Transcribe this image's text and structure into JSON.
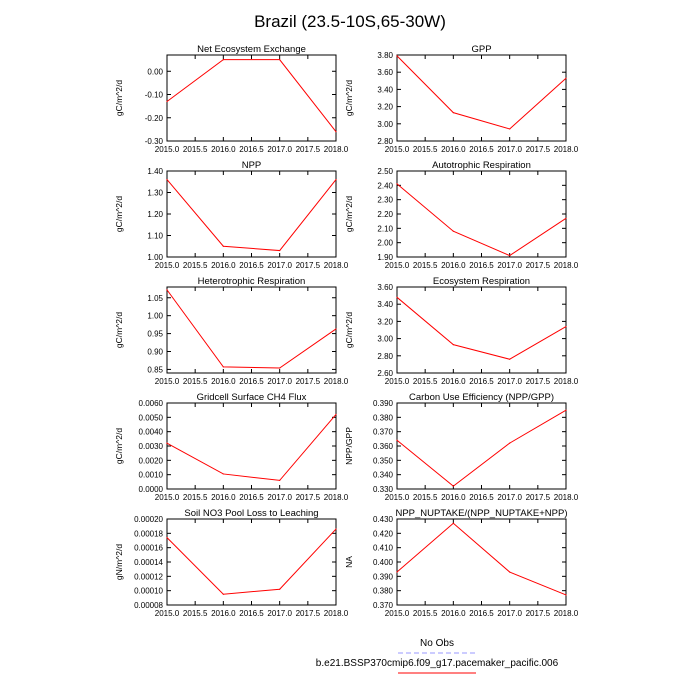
{
  "title": "Brazil (23.5-10S,65-30W)",
  "legend": {
    "obs_label": "No Obs",
    "obs_color": "#9999ff",
    "model_label": "b.e21.BSSP370cmip6.f09_g17.pacemaker_pacific.006",
    "model_color": "#ff0000"
  },
  "chart_data": [
    {
      "type": "line",
      "title": "Net Ecosystem Exchange",
      "ylabel": "gC/m^2/d",
      "x": [
        2015.0,
        2016.0,
        2017.0,
        2018.0
      ],
      "values": [
        -0.13,
        0.05,
        0.05,
        -0.26
      ],
      "xlim": [
        2015.0,
        2018.0
      ],
      "ylim": [
        -0.3,
        0.07
      ],
      "xticks": [
        "2015.0",
        "2015.5",
        "2016.0",
        "2016.5",
        "2017.0",
        "2017.5",
        "2018.0"
      ],
      "yticks": [
        "-0.30",
        "-0.20",
        "-0.10",
        "0.00"
      ]
    },
    {
      "type": "line",
      "title": "GPP",
      "ylabel": "gC/m^2/d",
      "x": [
        2015.0,
        2016.0,
        2017.0,
        2018.0
      ],
      "values": [
        3.79,
        3.13,
        2.94,
        3.53
      ],
      "xlim": [
        2015.0,
        2018.0
      ],
      "ylim": [
        2.8,
        3.8
      ],
      "xticks": [
        "2015.0",
        "2015.5",
        "2016.0",
        "2016.5",
        "2017.0",
        "2017.5",
        "2018.0"
      ],
      "yticks": [
        "2.80",
        "3.00",
        "3.20",
        "3.40",
        "3.60",
        "3.80"
      ]
    },
    {
      "type": "line",
      "title": "NPP",
      "ylabel": "gC/m^2/d",
      "x": [
        2015.0,
        2016.0,
        2017.0,
        2018.0
      ],
      "values": [
        1.36,
        1.05,
        1.03,
        1.36
      ],
      "xlim": [
        2015.0,
        2018.0
      ],
      "ylim": [
        1.0,
        1.4
      ],
      "xticks": [
        "2015.0",
        "2015.5",
        "2016.0",
        "2016.5",
        "2017.0",
        "2017.5",
        "2018.0"
      ],
      "yticks": [
        "1.00",
        "1.10",
        "1.20",
        "1.30",
        "1.40"
      ]
    },
    {
      "type": "line",
      "title": "Autotrophic Respiration",
      "ylabel": "gC/m^2/d",
      "x": [
        2015.0,
        2016.0,
        2017.0,
        2018.0
      ],
      "values": [
        2.41,
        2.08,
        1.91,
        2.17
      ],
      "xlim": [
        2015.0,
        2018.0
      ],
      "ylim": [
        1.9,
        2.5
      ],
      "xticks": [
        "2015.0",
        "2015.5",
        "2016.0",
        "2016.5",
        "2017.0",
        "2017.5",
        "2018.0"
      ],
      "yticks": [
        "1.90",
        "2.00",
        "2.10",
        "2.20",
        "2.30",
        "2.40",
        "2.50"
      ]
    },
    {
      "type": "line",
      "title": "Heterotrophic Respiration",
      "ylabel": "gC/m^2/d",
      "x": [
        2015.0,
        2016.0,
        2017.0,
        2018.0
      ],
      "values": [
        1.072,
        0.857,
        0.854,
        0.963
      ],
      "xlim": [
        2015.0,
        2018.0
      ],
      "ylim": [
        0.84,
        1.08
      ],
      "xticks": [
        "2015.0",
        "2015.5",
        "2016.0",
        "2016.5",
        "2017.0",
        "2017.5",
        "2018.0"
      ],
      "yticks": [
        "0.85",
        "0.90",
        "0.95",
        "1.00",
        "1.05"
      ]
    },
    {
      "type": "line",
      "title": "Ecosystem Respiration",
      "ylabel": "gC/m^2/d",
      "x": [
        2015.0,
        2016.0,
        2017.0,
        2018.0
      ],
      "values": [
        3.48,
        2.93,
        2.76,
        3.14
      ],
      "xlim": [
        2015.0,
        2018.0
      ],
      "ylim": [
        2.6,
        3.6
      ],
      "xticks": [
        "2015.0",
        "2015.5",
        "2016.0",
        "2016.5",
        "2017.0",
        "2017.5",
        "2018.0"
      ],
      "yticks": [
        "2.60",
        "2.80",
        "3.00",
        "3.20",
        "3.40",
        "3.60"
      ]
    },
    {
      "type": "line",
      "title": "Gridcell Surface CH4 Flux",
      "ylabel": "gC/m^2/d",
      "x": [
        2015.0,
        2016.0,
        2017.0,
        2018.0
      ],
      "values": [
        0.0032,
        0.00105,
        0.0006,
        0.0052
      ],
      "xlim": [
        2015.0,
        2018.0
      ],
      "ylim": [
        0.0,
        0.006
      ],
      "xticks": [
        "2015.0",
        "2015.5",
        "2016.0",
        "2016.5",
        "2017.0",
        "2017.5",
        "2018.0"
      ],
      "yticks": [
        "0.0000",
        "0.0010",
        "0.0020",
        "0.0030",
        "0.0040",
        "0.0050",
        "0.0060"
      ]
    },
    {
      "type": "line",
      "title": "Carbon Use Efficiency (NPP/GPP)",
      "ylabel": "NPP/GPP",
      "x": [
        2015.0,
        2016.0,
        2017.0,
        2018.0
      ],
      "values": [
        0.364,
        0.332,
        0.362,
        0.385
      ],
      "xlim": [
        2015.0,
        2018.0
      ],
      "ylim": [
        0.33,
        0.39
      ],
      "xticks": [
        "2015.0",
        "2015.5",
        "2016.0",
        "2016.5",
        "2017.0",
        "2017.5",
        "2018.0"
      ],
      "yticks": [
        "0.330",
        "0.340",
        "0.350",
        "0.360",
        "0.370",
        "0.380",
        "0.390"
      ]
    },
    {
      "type": "line",
      "title": "Soil NO3 Pool Loss to Leaching",
      "ylabel": "gN/m^2/d",
      "x": [
        2015.0,
        2016.0,
        2017.0,
        2018.0
      ],
      "values": [
        0.000174,
        9.5e-05,
        0.000102,
        0.000186
      ],
      "xlim": [
        2015.0,
        2018.0
      ],
      "ylim": [
        8e-05,
        0.0002
      ],
      "xticks": [
        "2015.0",
        "2015.5",
        "2016.0",
        "2016.5",
        "2017.0",
        "2017.5",
        "2018.0"
      ],
      "yticks": [
        "0.00008",
        "0.00010",
        "0.00012",
        "0.00014",
        "0.00016",
        "0.00018",
        "0.00020"
      ]
    },
    {
      "type": "line",
      "title": "NPP_NUPTAKE/(NPP_NUPTAKE+NPP)",
      "ylabel": "NA",
      "x": [
        2015.0,
        2016.0,
        2017.0,
        2018.0
      ],
      "values": [
        0.393,
        0.427,
        0.393,
        0.377
      ],
      "xlim": [
        2015.0,
        2018.0
      ],
      "ylim": [
        0.37,
        0.43
      ],
      "xticks": [
        "2015.0",
        "2015.5",
        "2016.0",
        "2016.5",
        "2017.0",
        "2017.5",
        "2018.0"
      ],
      "yticks": [
        "0.370",
        "0.380",
        "0.390",
        "0.400",
        "0.410",
        "0.420",
        "0.430"
      ]
    }
  ]
}
